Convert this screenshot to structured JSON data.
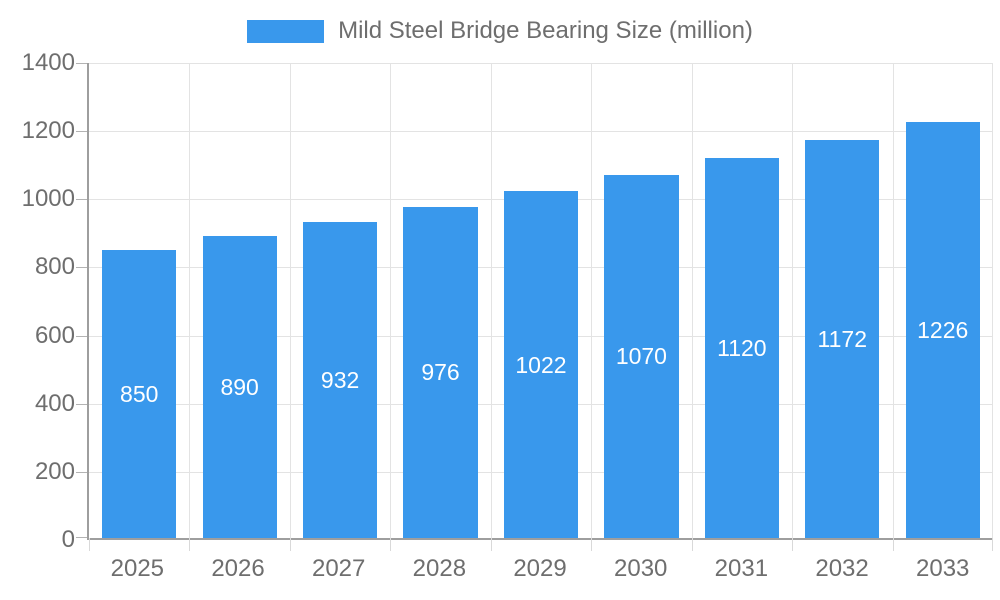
{
  "legend": {
    "label": "Mild Steel Bridge Bearing Size (million)",
    "swatch_color": "#3998EC"
  },
  "chart_data": {
    "type": "bar",
    "title": "Mild Steel Bridge Bearing Size (million)",
    "categories": [
      "2025",
      "2026",
      "2027",
      "2028",
      "2029",
      "2030",
      "2031",
      "2032",
      "2033"
    ],
    "values": [
      850,
      890,
      932,
      976,
      1022,
      1070,
      1120,
      1172,
      1226
    ],
    "xlabel": "",
    "ylabel": "",
    "ylim": [
      0,
      1400
    ],
    "y_ticks": [
      0,
      200,
      400,
      600,
      800,
      1000,
      1200,
      1400
    ],
    "grid": true,
    "legend_position": "top",
    "bar_labels_visible": true,
    "bar_label_position": "center"
  },
  "colors": {
    "bar": "#3998EC",
    "bar_label": "#ffffff",
    "axis_line": "#9e9e9e",
    "gridline": "#e3e3e3",
    "tick": "#b3b3b3",
    "axis_text": "#6e6e6e",
    "background": "#ffffff"
  }
}
